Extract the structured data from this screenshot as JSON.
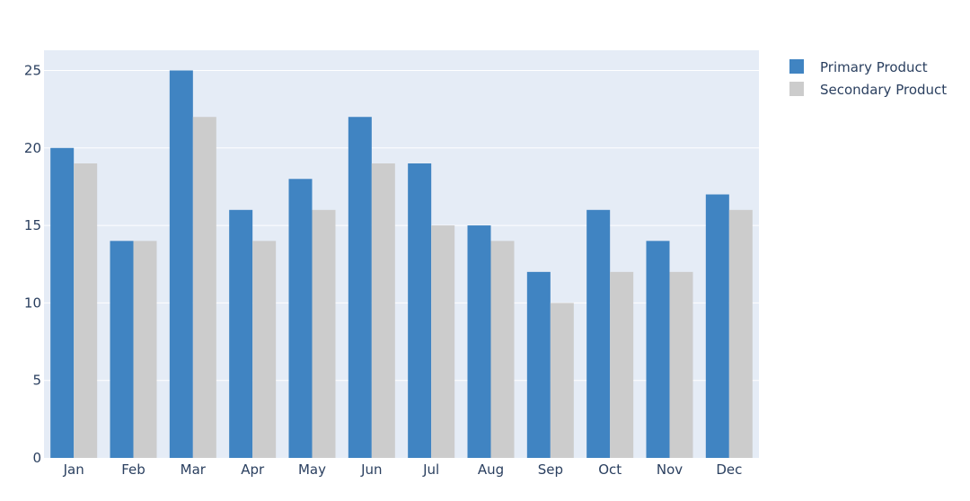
{
  "chart_data": {
    "type": "bar",
    "categories": [
      "Jan",
      "Feb",
      "Mar",
      "Apr",
      "May",
      "Jun",
      "Jul",
      "Aug",
      "Sep",
      "Oct",
      "Nov",
      "Dec"
    ],
    "series": [
      {
        "name": "Primary Product",
        "color": "#4084c2",
        "values": [
          20,
          14,
          25,
          16,
          18,
          22,
          19,
          15,
          12,
          16,
          14,
          17
        ]
      },
      {
        "name": "Secondary Product",
        "color": "#cccccc",
        "values": [
          19,
          14,
          22,
          14,
          16,
          19,
          15,
          14,
          10,
          12,
          12,
          16
        ]
      }
    ],
    "title": "",
    "xlabel": "",
    "ylabel": "",
    "ylim": [
      0,
      26.3
    ],
    "yticks": [
      0,
      5,
      10,
      15,
      20,
      25
    ],
    "grid": true,
    "legend_position": "top-right",
    "plot_background": "#e5ecf6",
    "grid_color": "#ffffff"
  }
}
